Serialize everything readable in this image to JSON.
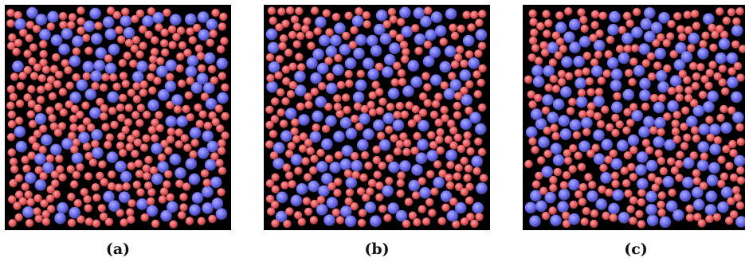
{
  "figure": {
    "panels": [
      {
        "id": "a",
        "caption": "(a)",
        "seed": 11,
        "red_fraction": 0.55
      },
      {
        "id": "b",
        "caption": "(b)",
        "seed": 27,
        "red_fraction": 0.45
      },
      {
        "id": "c",
        "caption": "(c)",
        "seed": 53,
        "red_fraction": 0.45
      }
    ]
  },
  "colors": {
    "background": "#000000",
    "blue_particle": "#6b6cf2",
    "red_particle": "#ec5a5e"
  }
}
